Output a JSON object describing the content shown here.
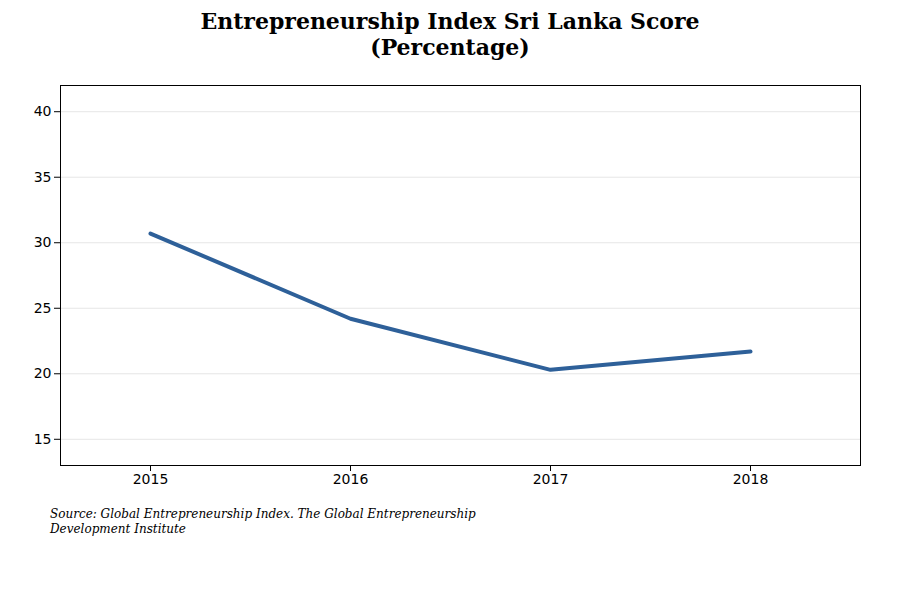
{
  "chart_data": {
    "type": "line",
    "title": "Entrepreneurship Index Sri Lanka Score\n(Percentage)",
    "x": [
      2015,
      2016,
      2017,
      2018
    ],
    "values": [
      30.7,
      24.2,
      20.3,
      21.7
    ],
    "color": "#2E6099",
    "xlim": [
      2014.55,
      2018.55
    ],
    "xticks": [
      2015,
      2016,
      2017,
      2018
    ],
    "ylim": [
      13,
      42
    ],
    "yticks": [
      15,
      20,
      25,
      30,
      35,
      40
    ],
    "grid": true,
    "source": "Source: Global Entrepreneurship Index. The Global Entrepreneurship\nDevelopment Institute"
  }
}
